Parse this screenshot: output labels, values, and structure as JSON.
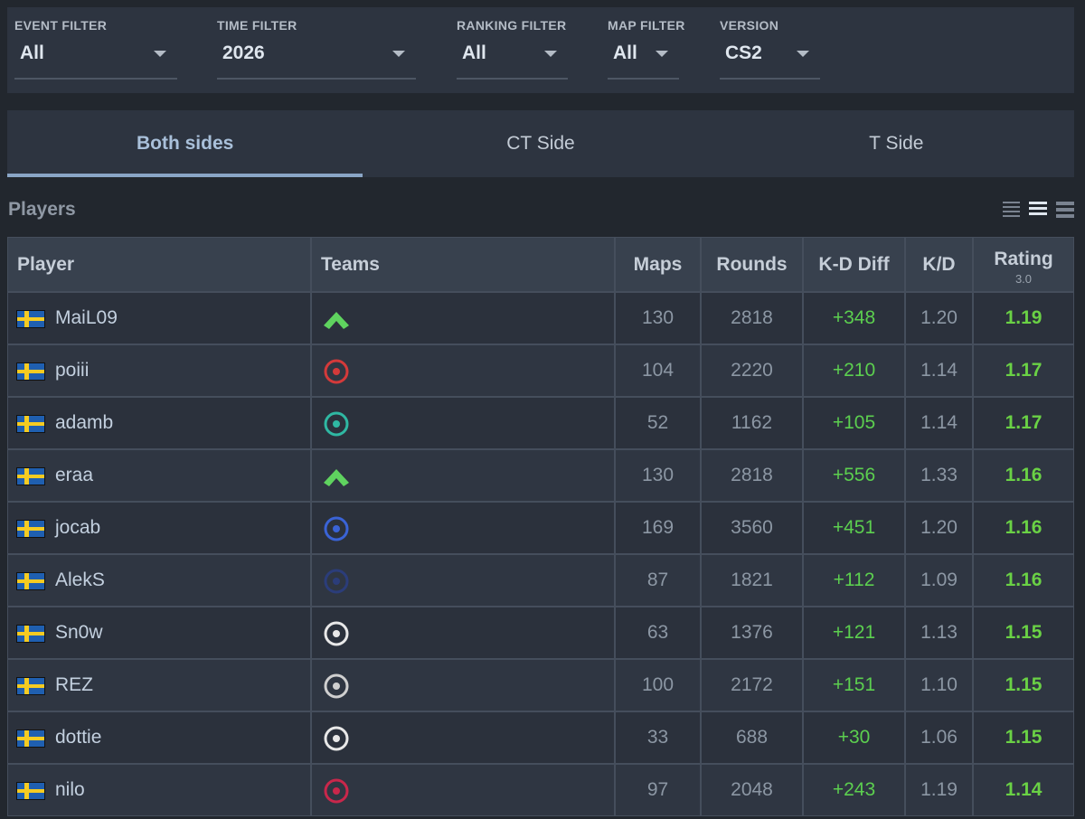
{
  "filters": [
    {
      "label": "EVENT FILTER",
      "value": "All"
    },
    {
      "label": "TIME FILTER",
      "value": "2026"
    },
    {
      "label": "RANKING FILTER",
      "value": "All"
    },
    {
      "label": "MAP FILTER",
      "value": "All"
    },
    {
      "label": "VERSION",
      "value": "CS2"
    }
  ],
  "tabs": [
    "Both sides",
    "CT Side",
    "T Side"
  ],
  "section_title": "Players",
  "table": {
    "columns": [
      "Player",
      "Teams",
      "Maps",
      "Rounds",
      "K-D Diff",
      "K/D",
      "Rating"
    ],
    "rating_subtitle": "3.0",
    "rows": [
      [
        "MaiL09",
        "130",
        "2818",
        "+348",
        "1.20",
        "1.19"
      ],
      [
        "poiii",
        "104",
        "2220",
        "+210",
        "1.14",
        "1.17"
      ],
      [
        "adamb",
        "52",
        "1162",
        "+105",
        "1.14",
        "1.17"
      ],
      [
        "eraa",
        "130",
        "2818",
        "+556",
        "1.33",
        "1.16"
      ],
      [
        "jocab",
        "169",
        "3560",
        "+451",
        "1.20",
        "1.16"
      ],
      [
        "AlekS",
        "87",
        "1821",
        "+112",
        "1.09",
        "1.16"
      ],
      [
        "Sn0w",
        "63",
        "1376",
        "+121",
        "1.13",
        "1.15"
      ],
      [
        "REZ",
        "100",
        "2172",
        "+151",
        "1.10",
        "1.15"
      ],
      [
        "dottie",
        "33",
        "688",
        "+30",
        "1.06",
        "1.15"
      ],
      [
        "nilo",
        "97",
        "2048",
        "+243",
        "1.19",
        "1.14"
      ]
    ]
  }
}
